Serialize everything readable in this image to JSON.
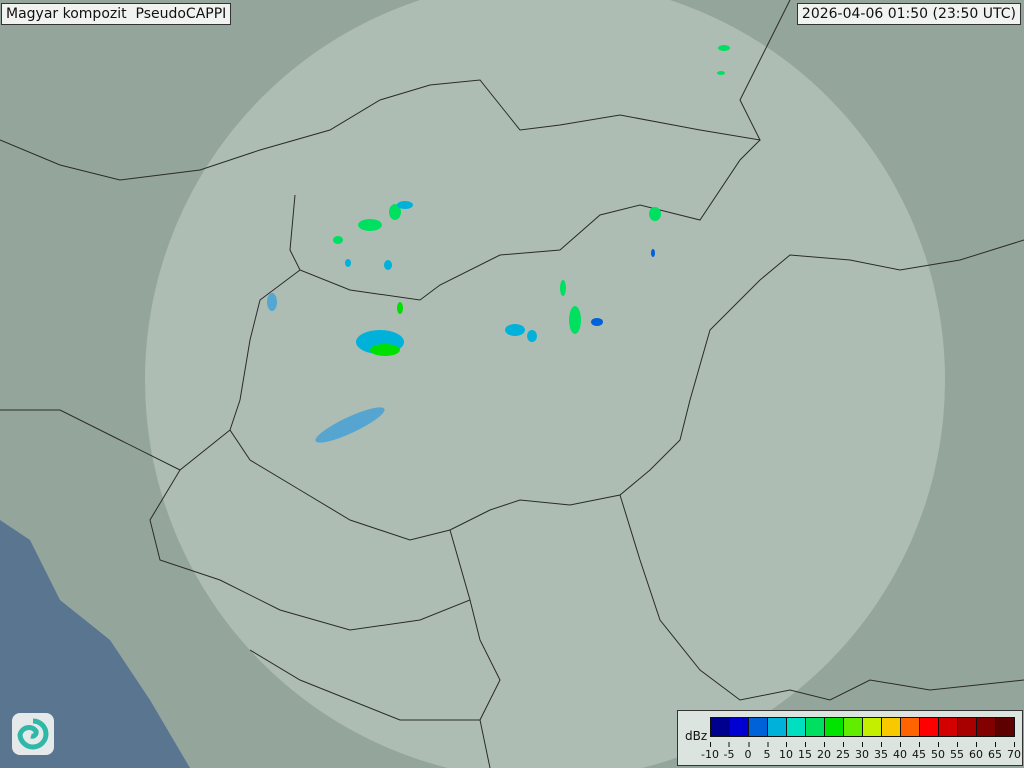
{
  "header": {
    "title": "Magyar kompozit  PseudoCAPPI",
    "timestamp": "2026-04-06 01:50 (23:50 UTC)"
  },
  "logo": {
    "icon": "swirl-logo-icon"
  },
  "legend": {
    "unit": "dBz",
    "ticks": [
      "-10",
      "-5",
      "0",
      "5",
      "10",
      "15",
      "20",
      "25",
      "30",
      "35",
      "40",
      "45",
      "50",
      "55",
      "60",
      "65",
      "70"
    ],
    "colors": [
      "#00008f",
      "#0000d2",
      "#0062d8",
      "#00b2da",
      "#00e0c0",
      "#00e060",
      "#00e400",
      "#62ec00",
      "#c4f000",
      "#f8c800",
      "#ff6400",
      "#ff0000",
      "#d40000",
      "#a80000",
      "#820000",
      "#5e0000"
    ]
  },
  "map": {
    "land_color": "#94a69c",
    "sea_color": "#5a7590",
    "radar_coverage_color": "#c8d6cc"
  }
}
